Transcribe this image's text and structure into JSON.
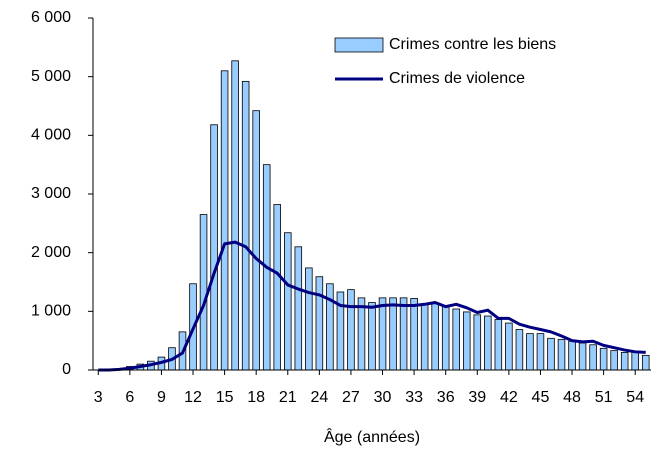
{
  "chart_data": {
    "type": "bar",
    "x_label": "Âge (années)",
    "x": [
      3,
      4,
      5,
      6,
      7,
      8,
      9,
      10,
      11,
      12,
      13,
      14,
      15,
      16,
      17,
      18,
      19,
      20,
      21,
      22,
      23,
      24,
      25,
      26,
      27,
      28,
      29,
      30,
      31,
      32,
      33,
      34,
      35,
      36,
      37,
      38,
      39,
      40,
      41,
      42,
      43,
      44,
      45,
      46,
      47,
      48,
      49,
      50,
      51,
      52,
      53,
      54,
      55
    ],
    "xlim": [
      2.5,
      55.5
    ],
    "xticks": [
      3,
      6,
      9,
      12,
      15,
      18,
      21,
      24,
      27,
      30,
      33,
      36,
      39,
      42,
      45,
      48,
      51,
      54
    ],
    "ylim": [
      0,
      6000
    ],
    "yticks": [
      0,
      {
        "value": 1000,
        "label": "1 000"
      },
      {
        "value": 2000,
        "label": "2 000"
      },
      {
        "value": 3000,
        "label": "3 000"
      },
      {
        "value": 4000,
        "label": "4 000"
      },
      {
        "value": 5000,
        "label": "5 000"
      },
      {
        "value": 6000,
        "label": "6 000"
      }
    ],
    "grid": false,
    "legend": "upper right",
    "series": [
      {
        "name": "Crimes contre les biens",
        "type": "bar",
        "color": "#99ccff",
        "values": [
          0,
          0,
          20,
          60,
          100,
          150,
          220,
          380,
          650,
          1470,
          2650,
          4180,
          5100,
          5270,
          4920,
          4420,
          3500,
          2820,
          2340,
          2100,
          1740,
          1590,
          1470,
          1330,
          1370,
          1230,
          1150,
          1230,
          1230,
          1230,
          1220,
          1120,
          1130,
          1080,
          1040,
          990,
          940,
          920,
          860,
          800,
          690,
          620,
          620,
          540,
          520,
          490,
          460,
          430,
          370,
          330,
          300,
          310,
          250
        ]
      },
      {
        "name": "Crimes de violence",
        "type": "line",
        "color": "#000080",
        "values": [
          0,
          0,
          10,
          30,
          60,
          90,
          130,
          180,
          290,
          700,
          1100,
          1650,
          2150,
          2180,
          2100,
          1900,
          1750,
          1650,
          1450,
          1380,
          1320,
          1280,
          1200,
          1100,
          1080,
          1080,
          1070,
          1100,
          1110,
          1100,
          1100,
          1120,
          1150,
          1080,
          1120,
          1060,
          980,
          1020,
          880,
          880,
          780,
          730,
          690,
          650,
          580,
          500,
          480,
          490,
          420,
          380,
          340,
          310,
          300
        ]
      }
    ]
  }
}
